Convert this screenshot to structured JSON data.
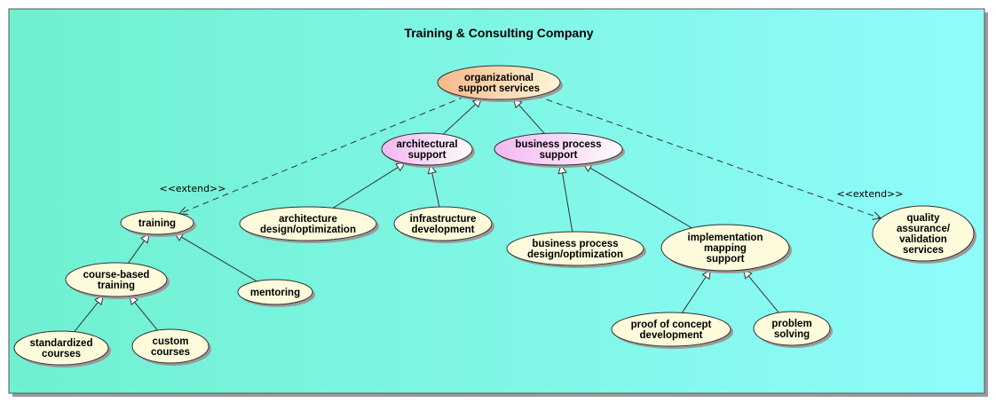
{
  "diagram": {
    "title": "Training & Consulting Company",
    "colors": {
      "background_start": "#6ff0d0",
      "background_end": "#8ffcfa",
      "root_fill_start": "#f7b889",
      "root_fill_end": "#fff6d8",
      "mid_fill_start": "#f3b7f2",
      "mid_fill_end": "#fffbfd",
      "leaf_fill": "#fdfbdc",
      "stroke": "#333333"
    },
    "nodes": [
      {
        "id": "organizational-support-services",
        "lines": [
          "organizational",
          "support services"
        ],
        "style": "root"
      },
      {
        "id": "architectural-support",
        "lines": [
          "architectural",
          "support"
        ],
        "style": "mid"
      },
      {
        "id": "business-process-support",
        "lines": [
          "business process",
          "support"
        ],
        "style": "mid"
      },
      {
        "id": "training",
        "lines": [
          "training"
        ],
        "style": "leaf"
      },
      {
        "id": "architecture-design-optimization",
        "lines": [
          "architecture",
          "design/optimization"
        ],
        "style": "leaf"
      },
      {
        "id": "infrastructure-development",
        "lines": [
          "infrastructure",
          "development"
        ],
        "style": "leaf"
      },
      {
        "id": "business-process-design-optimization",
        "lines": [
          "business process",
          "design/optimization"
        ],
        "style": "leaf"
      },
      {
        "id": "implementation-mapping-support",
        "lines": [
          "implementation",
          "mapping",
          "support"
        ],
        "style": "leaf"
      },
      {
        "id": "quality-assurance-validation-services",
        "lines": [
          "quality",
          "assurance/",
          "validation",
          "services"
        ],
        "style": "leaf"
      },
      {
        "id": "course-based-training",
        "lines": [
          "course-based",
          "training"
        ],
        "style": "leaf"
      },
      {
        "id": "mentoring",
        "lines": [
          "mentoring"
        ],
        "style": "leaf"
      },
      {
        "id": "standardized-courses",
        "lines": [
          "standardized",
          "courses"
        ],
        "style": "leaf"
      },
      {
        "id": "custom-courses",
        "lines": [
          "custom",
          "courses"
        ],
        "style": "leaf"
      },
      {
        "id": "proof-of-concept-development",
        "lines": [
          "proof of concept",
          "development"
        ],
        "style": "leaf"
      },
      {
        "id": "problem-solving",
        "lines": [
          "problem",
          "solving"
        ],
        "style": "leaf"
      }
    ],
    "edges": [
      {
        "from": "architectural-support",
        "to": "organizational-support-services",
        "kind": "generalization"
      },
      {
        "from": "business-process-support",
        "to": "organizational-support-services",
        "kind": "generalization"
      },
      {
        "from": "organizational-support-services",
        "to": "training",
        "kind": "extend",
        "label": "<<extend>>"
      },
      {
        "from": "organizational-support-services",
        "to": "quality-assurance-validation-services",
        "kind": "extend",
        "label": "<<extend>>"
      },
      {
        "from": "architecture-design-optimization",
        "to": "architectural-support",
        "kind": "generalization"
      },
      {
        "from": "infrastructure-development",
        "to": "architectural-support",
        "kind": "generalization"
      },
      {
        "from": "business-process-design-optimization",
        "to": "business-process-support",
        "kind": "generalization"
      },
      {
        "from": "implementation-mapping-support",
        "to": "business-process-support",
        "kind": "generalization"
      },
      {
        "from": "course-based-training",
        "to": "training",
        "kind": "generalization"
      },
      {
        "from": "mentoring",
        "to": "training",
        "kind": "generalization"
      },
      {
        "from": "standardized-courses",
        "to": "course-based-training",
        "kind": "generalization"
      },
      {
        "from": "custom-courses",
        "to": "course-based-training",
        "kind": "generalization"
      },
      {
        "from": "proof-of-concept-development",
        "to": "implementation-mapping-support",
        "kind": "generalization"
      },
      {
        "from": "problem-solving",
        "to": "implementation-mapping-support",
        "kind": "generalization"
      }
    ]
  }
}
